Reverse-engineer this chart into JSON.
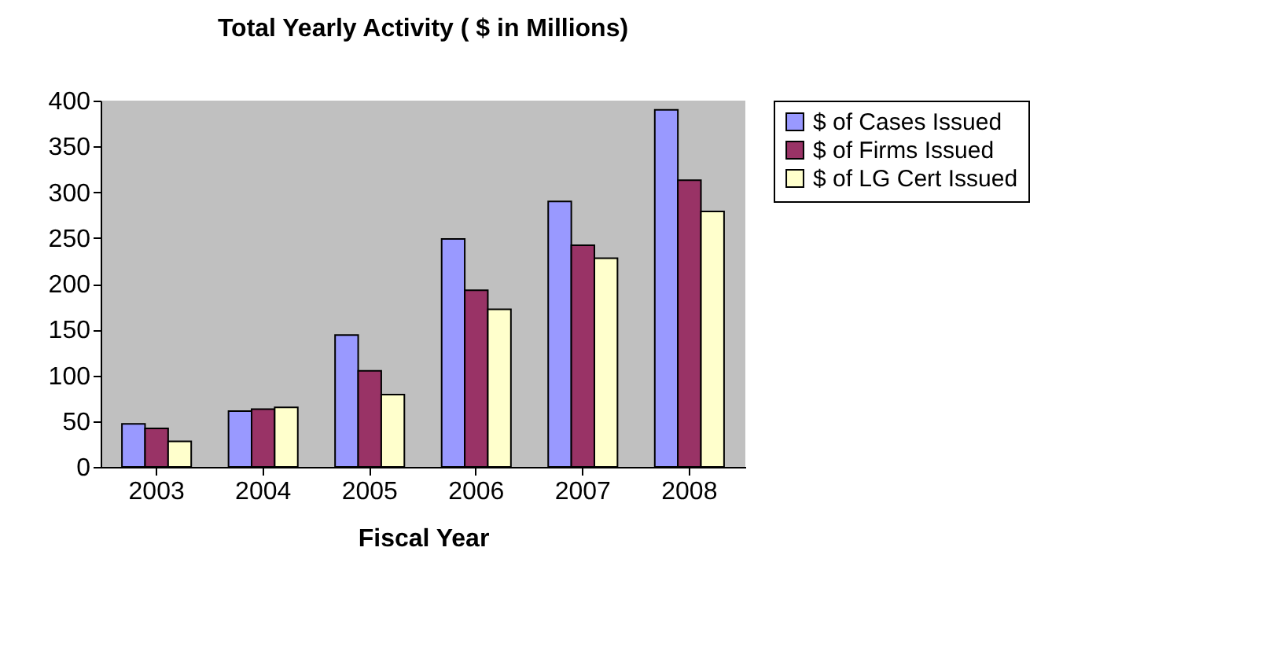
{
  "chart_data": {
    "type": "bar",
    "title": "Total Yearly Activity ( $ in Millions)",
    "xlabel": "Fiscal Year",
    "categories": [
      "2003",
      "2004",
      "2005",
      "2006",
      "2007",
      "2008"
    ],
    "series": [
      {
        "name": "$ of Cases Issued",
        "color": "#9999ff",
        "values": [
          47,
          61,
          144,
          249,
          290,
          390
        ]
      },
      {
        "name": "$ of Firms Issued",
        "color": "#993366",
        "values": [
          42,
          63,
          105,
          193,
          242,
          313
        ]
      },
      {
        "name": "$ of LG Cert Issued",
        "color": "#ffffcc",
        "values": [
          28,
          65,
          79,
          172,
          228,
          279
        ]
      }
    ],
    "ylim": [
      0,
      400
    ],
    "yticks": [
      0,
      50,
      100,
      150,
      200,
      250,
      300,
      350,
      400
    ],
    "grid": false,
    "legend": "right"
  }
}
